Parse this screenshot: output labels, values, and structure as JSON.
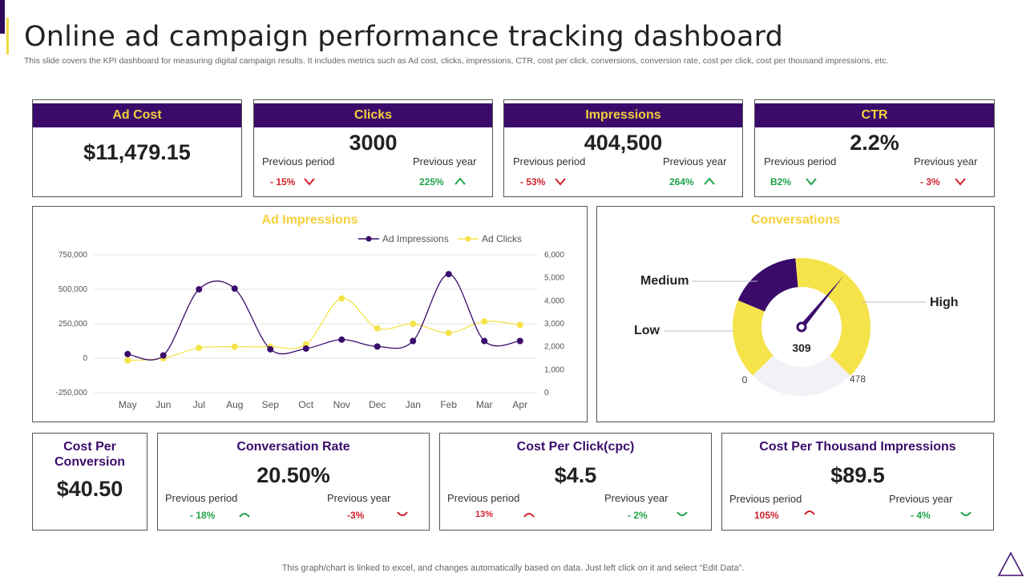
{
  "header": {
    "title": "Online ad campaign performance tracking dashboard",
    "subtitle": "This slide covers the KPI dashboard for measuring digital campaign results. It includes metrics such as Ad cost, clicks, impressions, CTR, cost per click, conversions, conversion rate, cost per click, cost per thousand impressions, etc."
  },
  "colors": {
    "purple": "#3a0b6b",
    "yellow": "#f5cf3b",
    "red": "#d01f2a",
    "green": "#1fa34a"
  },
  "kpis": {
    "ad_cost": {
      "label": "Ad Cost",
      "value": "$11,479.15"
    },
    "clicks": {
      "label": "Clicks",
      "value": "3000",
      "prev_period_label": "Previous period",
      "prev_period": "- 15%",
      "prev_period_trend": "down",
      "prev_year_label": "Previous year",
      "prev_year": "225%",
      "prev_year_trend": "up"
    },
    "impressions": {
      "label": "Impressions",
      "value": "404,500",
      "prev_period_label": "Previous period",
      "prev_period": "- 53%",
      "prev_period_trend": "down",
      "prev_year_label": "Previous year",
      "prev_year": "264%",
      "prev_year_trend": "up"
    },
    "ctr": {
      "label": "CTR",
      "value": "2.2%",
      "prev_period_label": "Previous period",
      "prev_period": "B2%",
      "prev_period_trend": "down",
      "prev_year_label": "Previous year",
      "prev_year": "- 3%",
      "prev_year_trend": "down"
    }
  },
  "chart_data": [
    {
      "type": "line",
      "title": "Ad Impressions",
      "categories": [
        "May",
        "Jun",
        "Jul",
        "Aug",
        "Sep",
        "Oct",
        "Nov",
        "Dec",
        "Jan",
        "Feb",
        "Mar",
        "Apr"
      ],
      "series": [
        {
          "name": "Ad Impressions",
          "axis": "left",
          "color": "#3a0b6b",
          "values": [
            30000,
            20000,
            500000,
            505000,
            65000,
            70000,
            135000,
            85000,
            125000,
            610000,
            125000,
            125000
          ]
        },
        {
          "name": "Ad Clicks",
          "axis": "right",
          "color": "#f5e34a",
          "values": [
            1400,
            1500,
            1950,
            2000,
            2000,
            2100,
            4100,
            2800,
            3000,
            2600,
            3100,
            2950
          ]
        }
      ],
      "left_axis": {
        "min": -250000,
        "max": 750000,
        "ticks": [
          "750,000",
          "500,000",
          "250,000",
          "0",
          "-250,000"
        ]
      },
      "right_axis": {
        "min": 0,
        "max": 6000,
        "ticks": [
          "6,000",
          "5,000",
          "4,000",
          "3,000",
          "2,000",
          "1,000",
          "0"
        ]
      },
      "legend": "top-right",
      "grid": true
    },
    {
      "type": "gauge",
      "title": "Conversations",
      "min": 0,
      "max": 478,
      "value": 309,
      "min_label": "0",
      "max_label": "478",
      "value_label": "309",
      "bands": [
        {
          "name": "Low",
          "from": 0,
          "to": 120,
          "color": "#f5e34a"
        },
        {
          "name": "Medium",
          "from": 120,
          "to": 230,
          "color": "#3a0b6b"
        },
        {
          "name": "High",
          "from": 230,
          "to": 478,
          "color": "#f5e34a"
        }
      ]
    }
  ],
  "bottom": {
    "cost_per_conversion": {
      "label": "Cost Per Conversion",
      "value": "$40.50"
    },
    "conversion_rate": {
      "label": "Conversation Rate",
      "value": "20.50%",
      "prev_period_label": "Previous period",
      "prev_period": "- 18%",
      "prev_period_trend": "up",
      "prev_year_label": "Previous year",
      "prev_year": "-3%",
      "prev_year_trend": "down"
    },
    "cpc": {
      "label": "Cost Per Click(cpc)",
      "value": "$4.5",
      "prev_period_label": "Previous period",
      "prev_period": "13%",
      "prev_period_trend": "up",
      "prev_year_label": "Previous year",
      "prev_year": "- 2%",
      "prev_year_trend": "down"
    },
    "cpm": {
      "label": "Cost Per Thousand Impressions",
      "value": "$89.5",
      "prev_period_label": "Previous period",
      "prev_period": "105%",
      "prev_period_trend": "up",
      "prev_year_label": "Previous year",
      "prev_year": "- 4%",
      "prev_year_trend": "down"
    }
  },
  "footer": {
    "note": "This graph/chart is linked to excel,  and changes automatically based on data. Just left click on it and select “Edit Data”."
  }
}
